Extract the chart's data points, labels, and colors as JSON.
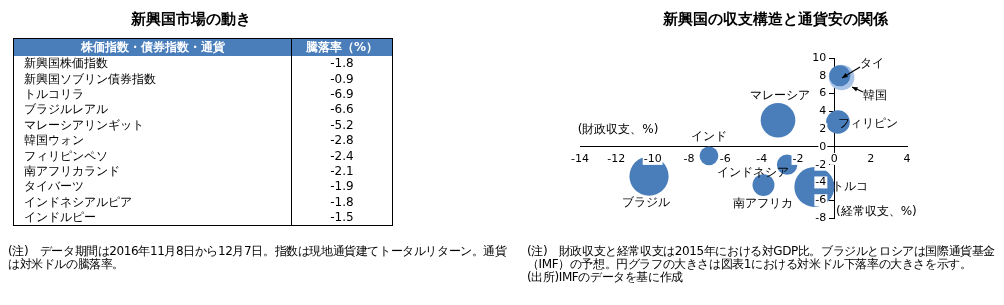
{
  "chart_data": [
    {
      "type": "other",
      "title": "新興国市場の動き",
      "xlabel": "株価指数・債券指数・通貨",
      "ylabel": "騰落率（%）",
      "categories": [
        "新興国株価指数",
        "新興国ソブリン債券指数",
        "トルコリラ",
        "ブラジルレアル",
        "マレーシアリンギット",
        "韓国ウォン",
        "フィリピンペソ",
        "南アフリカランド",
        "タイバーツ",
        "インドネシアルピア",
        "インドルピー"
      ],
      "values": [
        -1.8,
        -0.9,
        -6.9,
        -6.6,
        -5.2,
        -2.8,
        -2.4,
        -2.1,
        -1.9,
        -1.8,
        -1.5
      ],
      "data_labels": true,
      "annotations": [
        "(注)　データ期間は2016年11月8日から12月7日。指数は現地通貨建てトータルリターン。通貨は対米ドルの騰落率。"
      ]
    },
    {
      "type": "bubble",
      "title": "新興国の収支構造と通貨安の関係",
      "xlabel": "(財政収支、%)",
      "ylabel": "(経常収支、%)",
      "xlim": [
        -14,
        4
      ],
      "xticks": [
        -14,
        -12,
        -10,
        -8,
        -6,
        -4,
        -2,
        0,
        2,
        4
      ],
      "ylim": [
        -8,
        10
      ],
      "yticks": [
        -8,
        -6,
        -4,
        -2,
        0,
        2,
        4,
        6,
        8,
        10
      ],
      "grid": false,
      "legend": false,
      "series": [
        {
          "name": "韓国",
          "color": "#a9c3e6",
          "x": [
            0.4
          ],
          "values": [
            7.8
          ],
          "sizes": [
            0.41
          ]
        },
        {
          "name": "タイ",
          "color": "#4a7ebb",
          "x": [
            0.3
          ],
          "values": [
            8.0
          ],
          "sizes": [
            0.28
          ]
        },
        {
          "name": "フィリピン",
          "color": "#4a7ebb",
          "x": [
            0.2
          ],
          "values": [
            2.8
          ],
          "sizes": [
            0.35
          ]
        },
        {
          "name": "マレーシア",
          "color": "#4a7ebb",
          "x": [
            -3.1
          ],
          "values": [
            3.0
          ],
          "sizes": [
            0.75
          ]
        },
        {
          "name": "インド",
          "color": "#4a7ebb",
          "x": [
            -6.9
          ],
          "values": [
            -1.0
          ],
          "sizes": [
            0.22
          ]
        },
        {
          "name": "インドネシア",
          "color": "#4a7ebb",
          "x": [
            -2.6
          ],
          "values": [
            -2.0
          ],
          "sizes": [
            0.26
          ]
        },
        {
          "name": "ブラジル",
          "color": "#4a7ebb",
          "x": [
            -10.2
          ],
          "values": [
            -3.3
          ],
          "sizes": [
            0.96
          ]
        },
        {
          "name": "南アフリカ",
          "color": "#4a7ebb",
          "x": [
            -3.9
          ],
          "values": [
            -4.3
          ],
          "sizes": [
            0.3
          ]
        },
        {
          "name": "トルコ",
          "color": "#4a7ebb",
          "x": [
            -1.1
          ],
          "values": [
            -4.5
          ],
          "sizes": [
            1
          ]
        }
      ],
      "annotations": [
        "(注)　財政収支と経常収支は2015年における対GDP比。ブラジルとロシアは国際通貨基金（IMF）の予想。円グラフの大きさは図表1における対米ドル下落率の大きさを示す。",
        "(出所)IMFのデータを基に作成"
      ]
    }
  ]
}
